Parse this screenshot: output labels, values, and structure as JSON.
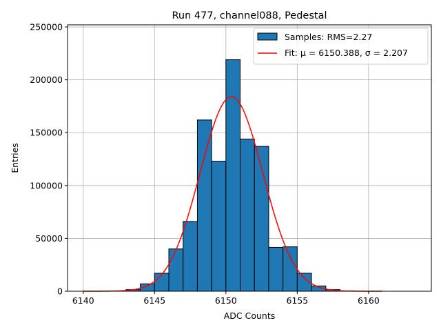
{
  "chart_data": {
    "type": "bar",
    "title": "Run 477, channel088, Pedestal",
    "xlabel": "ADC Counts",
    "ylabel": "Entries",
    "xlim": [
      6138.9,
      6164.4
    ],
    "ylim": [
      0,
      252000
    ],
    "xticks": [
      6140,
      6145,
      6150,
      6155,
      6160
    ],
    "yticks": [
      0,
      50000,
      100000,
      150000,
      200000,
      250000
    ],
    "grid": true,
    "legend_position": "top-right",
    "bin_width": 1,
    "bins": [
      6143,
      6144,
      6145,
      6146,
      6147,
      6148,
      6149,
      6150,
      6151,
      6152,
      6153,
      6154,
      6155,
      6156,
      6157,
      6158
    ],
    "values": [
      1500,
      7000,
      17000,
      40000,
      66000,
      162000,
      123000,
      219000,
      144000,
      137000,
      41500,
      42000,
      17000,
      5000,
      1500,
      300
    ],
    "fit": {
      "mu": 6150.388,
      "sigma": 2.207,
      "amplitude": 184000,
      "range": [
        6140,
        6161
      ]
    },
    "legend": [
      "Samples: RMS=2.27",
      "Fit: μ = 6150.388, σ = 2.207"
    ],
    "colors": {
      "bar": "#1f77b4",
      "fit": "#ff0000"
    }
  }
}
